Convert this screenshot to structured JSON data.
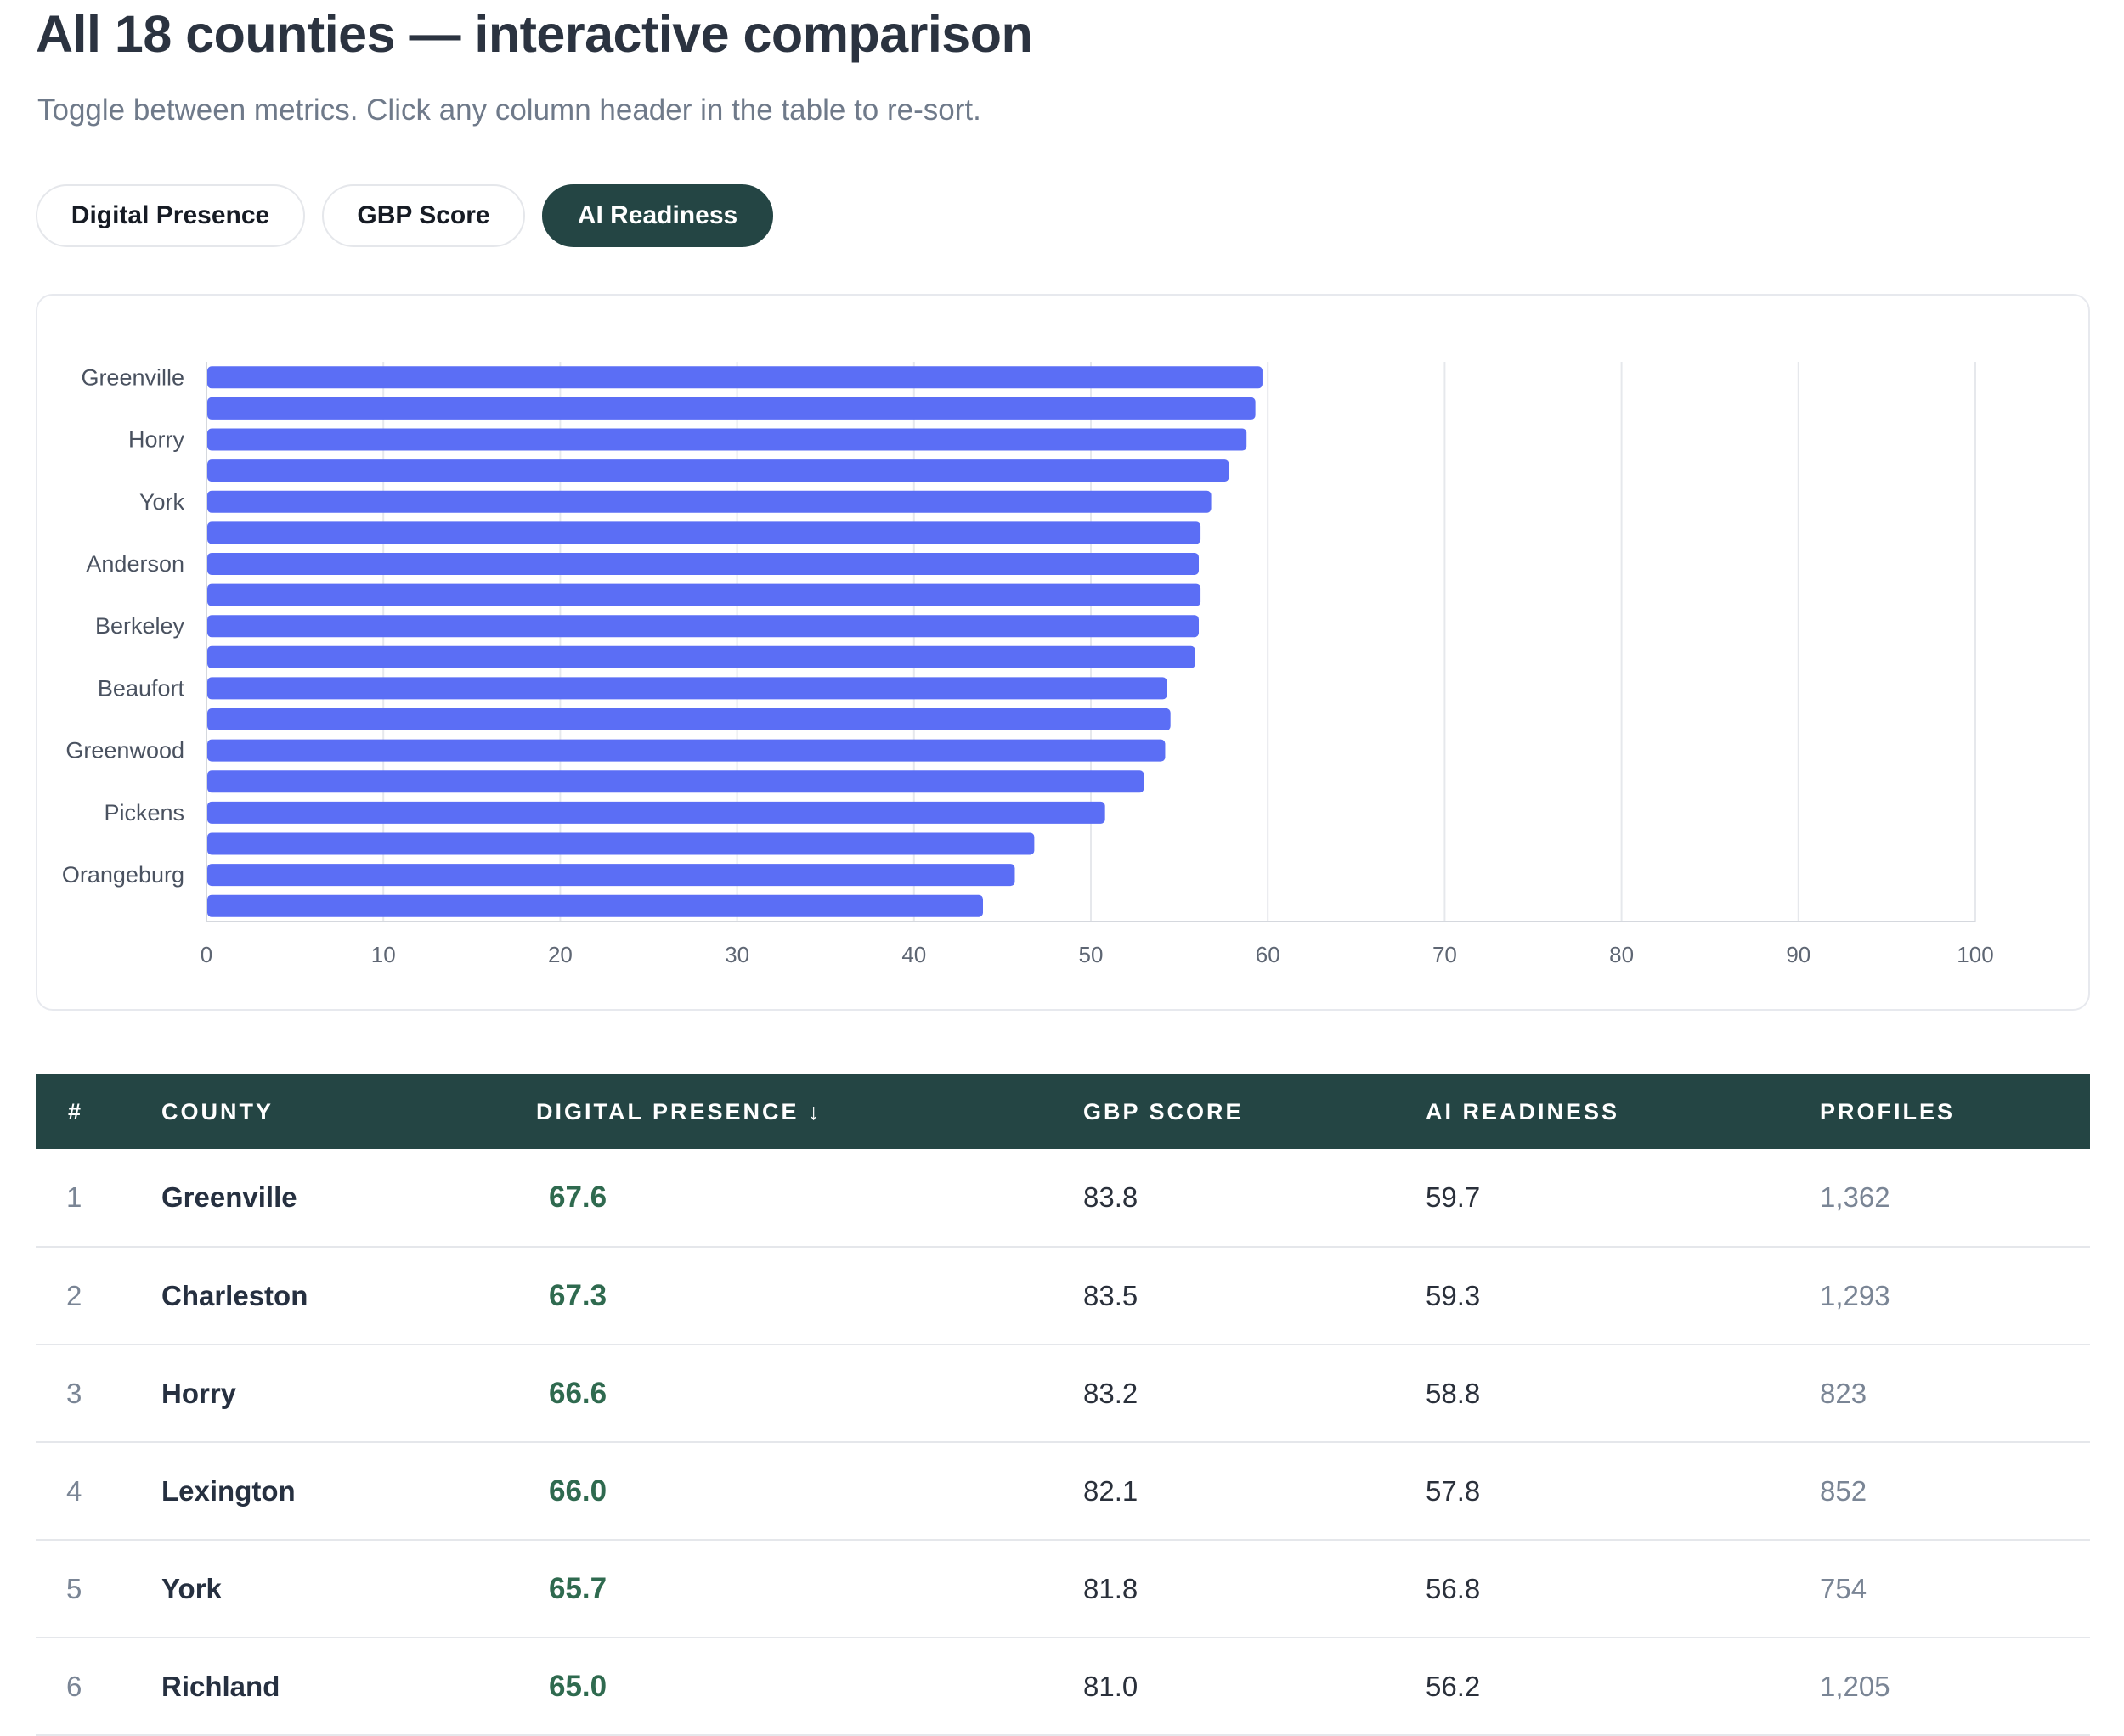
{
  "header": {
    "title": "All 18 counties — interactive comparison",
    "subtitle": "Toggle between metrics. Click any column header in the table to re-sort."
  },
  "toggles": [
    {
      "label": "Digital Presence",
      "active": false
    },
    {
      "label": "GBP Score",
      "active": false
    },
    {
      "label": "AI Readiness",
      "active": true
    }
  ],
  "colors": {
    "bar": "#5b6ef5",
    "accent": "#244544",
    "presence_text": "#2f6a4f",
    "grid": "#e6e8ec"
  },
  "chart_data": {
    "type": "bar",
    "orientation": "horizontal",
    "metric": "AI Readiness",
    "category_labels": [
      "Greenville",
      "",
      "Horry",
      "",
      "York",
      "",
      "Anderson",
      "",
      "Berkeley",
      "",
      "Beaufort",
      "",
      "Greenwood",
      "",
      "Pickens",
      "",
      "Orangeburg",
      ""
    ],
    "values": [
      59.7,
      59.3,
      58.8,
      57.8,
      56.8,
      56.2,
      56.1,
      56.2,
      56.1,
      55.9,
      54.3,
      54.5,
      54.2,
      53.0,
      50.8,
      46.8,
      45.7,
      43.9
    ],
    "xlim": [
      0,
      100
    ],
    "xticks": [
      "0",
      "10",
      "20",
      "30",
      "40",
      "50",
      "60",
      "70",
      "80",
      "90",
      "100"
    ],
    "grid": true,
    "legend": "none"
  },
  "table": {
    "headers": {
      "rank": "#",
      "county": "County",
      "digital_presence": "Digital Presence ↓",
      "gbp": "GBP Score",
      "ai": "AI Readiness",
      "profiles": "Profiles"
    },
    "rows": [
      {
        "rank": "1",
        "county": "Greenville",
        "dp": "67.6",
        "gbp": "83.8",
        "ai": "59.7",
        "profiles": "1,362"
      },
      {
        "rank": "2",
        "county": "Charleston",
        "dp": "67.3",
        "gbp": "83.5",
        "ai": "59.3",
        "profiles": "1,293"
      },
      {
        "rank": "3",
        "county": "Horry",
        "dp": "66.6",
        "gbp": "83.2",
        "ai": "58.8",
        "profiles": "823"
      },
      {
        "rank": "4",
        "county": "Lexington",
        "dp": "66.0",
        "gbp": "82.1",
        "ai": "57.8",
        "profiles": "852"
      },
      {
        "rank": "5",
        "county": "York",
        "dp": "65.7",
        "gbp": "81.8",
        "ai": "56.8",
        "profiles": "754"
      },
      {
        "rank": "6",
        "county": "Richland",
        "dp": "65.0",
        "gbp": "81.0",
        "ai": "56.2",
        "profiles": "1,205"
      }
    ]
  }
}
